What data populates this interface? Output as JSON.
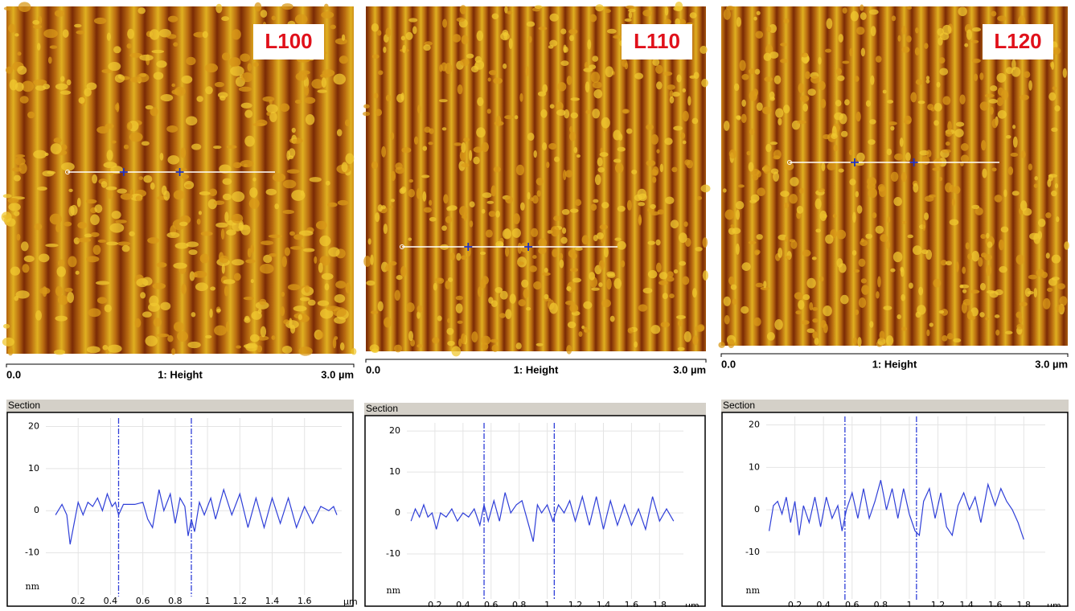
{
  "chart_data": [
    {
      "type": "line",
      "panel_label": "L100",
      "scale_start": "0.0",
      "scale_label": "1: Height",
      "scale_end": "3.0 µm",
      "section_title": "Section",
      "xlabel": "µm",
      "ylabel": "nm",
      "x": [
        0.06,
        0.1,
        0.13,
        0.15,
        0.18,
        0.2,
        0.23,
        0.26,
        0.29,
        0.32,
        0.35,
        0.38,
        0.41,
        0.43,
        0.45,
        0.48,
        0.55,
        0.6,
        0.63,
        0.66,
        0.7,
        0.73,
        0.77,
        0.8,
        0.83,
        0.86,
        0.88,
        0.9,
        0.92,
        0.95,
        0.98,
        1.02,
        1.05,
        1.1,
        1.15,
        1.2,
        1.25,
        1.3,
        1.35,
        1.4,
        1.45,
        1.5,
        1.55,
        1.6,
        1.65,
        1.7,
        1.75,
        1.78,
        1.8
      ],
      "series": [
        {
          "color": "#2f3fd8",
          "values": [
            -1,
            1.5,
            -1,
            -8,
            -2,
            2,
            -1,
            2,
            1,
            3,
            0,
            4,
            1,
            2,
            -1,
            1.5,
            1.5,
            2,
            -2,
            -4,
            5,
            0,
            4,
            -3,
            3,
            1,
            -6,
            -2,
            -5,
            2,
            -1,
            3,
            -2,
            5,
            -1,
            4,
            -4,
            3,
            -4,
            3,
            -3,
            3,
            -4,
            1,
            -3,
            1,
            0,
            1,
            -1
          ]
        }
      ],
      "cursors": [
        0.45,
        0.9
      ],
      "xlim": [
        0,
        1.83
      ],
      "ylim": [
        -20,
        22
      ],
      "xticks": [
        0.2,
        0.4,
        0.6,
        0.8,
        1,
        1.2,
        1.4,
        1.6
      ],
      "yticks": [
        20,
        10,
        0,
        -10
      ],
      "grid": true
    },
    {
      "type": "line",
      "panel_label": "L110",
      "scale_start": "0.0",
      "scale_label": "1: Height",
      "scale_end": "3.0 µm",
      "section_title": "Section",
      "xlabel": "µm",
      "ylabel": "nm",
      "x": [
        0.03,
        0.06,
        0.09,
        0.12,
        0.15,
        0.18,
        0.21,
        0.24,
        0.28,
        0.32,
        0.36,
        0.4,
        0.44,
        0.48,
        0.52,
        0.55,
        0.58,
        0.62,
        0.66,
        0.7,
        0.74,
        0.78,
        0.82,
        0.86,
        0.9,
        0.93,
        0.96,
        1.0,
        1.04,
        1.08,
        1.12,
        1.16,
        1.2,
        1.25,
        1.3,
        1.35,
        1.4,
        1.45,
        1.5,
        1.55,
        1.6,
        1.65,
        1.7,
        1.75,
        1.8,
        1.85,
        1.9
      ],
      "series": [
        {
          "color": "#2f3fd8",
          "values": [
            -2,
            1,
            -1,
            2,
            -1,
            0,
            -4,
            0,
            -1,
            1,
            -2,
            0,
            -1,
            1,
            -3,
            2,
            -2,
            3,
            -2,
            5,
            0,
            2,
            3,
            -2,
            -7,
            2,
            0,
            2,
            -2,
            2,
            0,
            3,
            -2,
            4,
            -3,
            4,
            -4,
            3,
            -3,
            2,
            -3,
            1,
            -4,
            4,
            -2,
            1,
            -2
          ]
        }
      ],
      "cursors": [
        0.55,
        1.05
      ],
      "xlim": [
        0,
        1.97
      ],
      "ylim": [
        -21,
        22
      ],
      "xticks": [
        0.2,
        0.4,
        0.6,
        0.8,
        1,
        1.2,
        1.4,
        1.6,
        1.8
      ],
      "yticks": [
        20,
        10,
        0,
        -10
      ],
      "grid": true
    },
    {
      "type": "line",
      "panel_label": "L120",
      "scale_start": "0.0",
      "scale_label": "1: Height",
      "scale_end": "3.0 µm",
      "section_title": "Section",
      "xlabel": "µm",
      "ylabel": "nm",
      "x": [
        0.02,
        0.05,
        0.08,
        0.11,
        0.14,
        0.17,
        0.2,
        0.23,
        0.26,
        0.3,
        0.34,
        0.38,
        0.42,
        0.46,
        0.5,
        0.53,
        0.56,
        0.6,
        0.64,
        0.68,
        0.72,
        0.76,
        0.8,
        0.84,
        0.88,
        0.92,
        0.96,
        1.0,
        1.04,
        1.07,
        1.1,
        1.14,
        1.18,
        1.22,
        1.26,
        1.3,
        1.34,
        1.38,
        1.42,
        1.46,
        1.5,
        1.55,
        1.6,
        1.64,
        1.68,
        1.72,
        1.76,
        1.8
      ],
      "series": [
        {
          "color": "#2f3fd8",
          "values": [
            -5,
            1,
            2,
            -1,
            3,
            -3,
            2,
            -6,
            1,
            -3,
            3,
            -4,
            3,
            -2,
            1,
            -5,
            0,
            4,
            -2,
            5,
            -2,
            2,
            7,
            0,
            5,
            -2,
            5,
            -1,
            -5,
            -6,
            2,
            5,
            -2,
            4,
            -4,
            -6,
            1,
            4,
            0,
            3,
            -3,
            6,
            1,
            5,
            2,
            0,
            -3,
            -7
          ]
        }
      ],
      "cursors": [
        0.55,
        1.05
      ],
      "xlim": [
        0,
        1.95
      ],
      "ylim": [
        -21,
        22
      ],
      "xticks": [
        0.2,
        0.4,
        0.6,
        0.8,
        1,
        1.2,
        1.4,
        1.6,
        1.8
      ],
      "yticks": [
        20,
        10,
        0,
        -10
      ],
      "grid": true
    }
  ]
}
